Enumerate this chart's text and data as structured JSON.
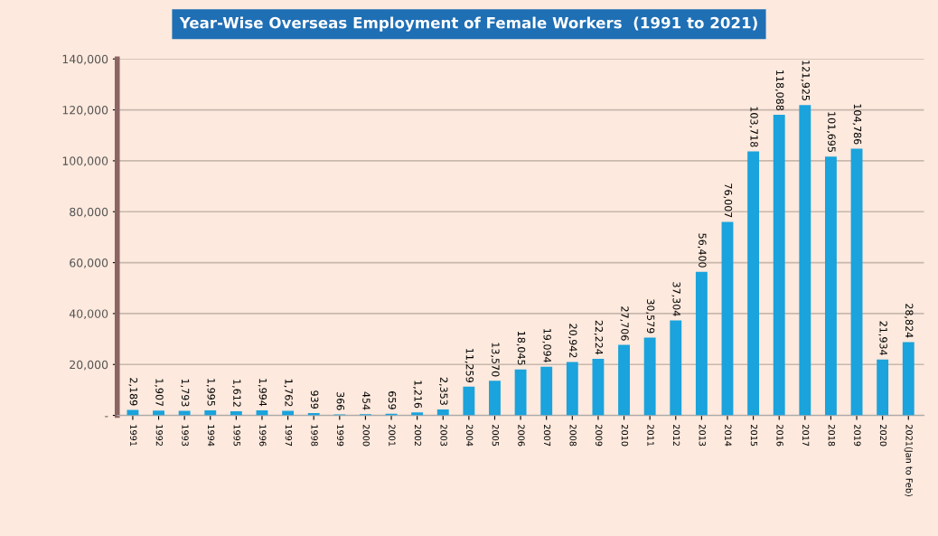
{
  "chart_data": {
    "type": "bar",
    "title": "Year-Wise Overseas Employment of Female Workers  (1991 to 2021)",
    "categories": [
      "1991",
      "1992",
      "1993",
      "1994",
      "1995",
      "1996",
      "1997",
      "1998",
      "1999",
      "2000",
      "2001",
      "2002",
      "2003",
      "2004",
      "2005",
      "2006",
      "2007",
      "2008",
      "2009",
      "2010",
      "2011",
      "2012",
      "2013",
      "2014",
      "2015",
      "2016",
      "2017",
      "2018",
      "2019",
      "2020",
      "2021(Jan to Feb)"
    ],
    "values": [
      2189,
      1907,
      1793,
      1995,
      1612,
      1994,
      1762,
      939,
      366,
      454,
      659,
      1216,
      2353,
      11259,
      13570,
      18045,
      19094,
      20942,
      22224,
      27706,
      30579,
      37304,
      56400,
      76007,
      103718,
      118088,
      121925,
      101695,
      104786,
      21934,
      28824
    ],
    "color": "#1aa3dc",
    "ylim": [
      0,
      140000
    ],
    "yticks": [
      {
        "value": 0,
        "label": "-"
      },
      {
        "value": 20000,
        "label": "20,000"
      },
      {
        "value": 40000,
        "label": "40,000"
      },
      {
        "value": 60000,
        "label": "60,000"
      },
      {
        "value": 80000,
        "label": "80,000"
      },
      {
        "value": 100000,
        "label": "100,000"
      },
      {
        "value": 120000,
        "label": "120,000"
      },
      {
        "value": 140000,
        "label": "140,000"
      }
    ],
    "value_labels": [
      "2,189",
      "1,907",
      "1,793",
      "1,995",
      "1,612",
      "1,994",
      "1,762",
      "939",
      "366",
      "454",
      "659",
      "1,216",
      "2,353",
      "11,259",
      "13,570",
      "18,045",
      "19,094",
      "20,942",
      "22,224",
      "27,706",
      "30,579",
      "37,304",
      "56,400",
      "76,007",
      "103,718",
      "118,088",
      "121,925",
      "101,695",
      "104,786",
      "21,934",
      "28,824"
    ],
    "grid": "y"
  }
}
